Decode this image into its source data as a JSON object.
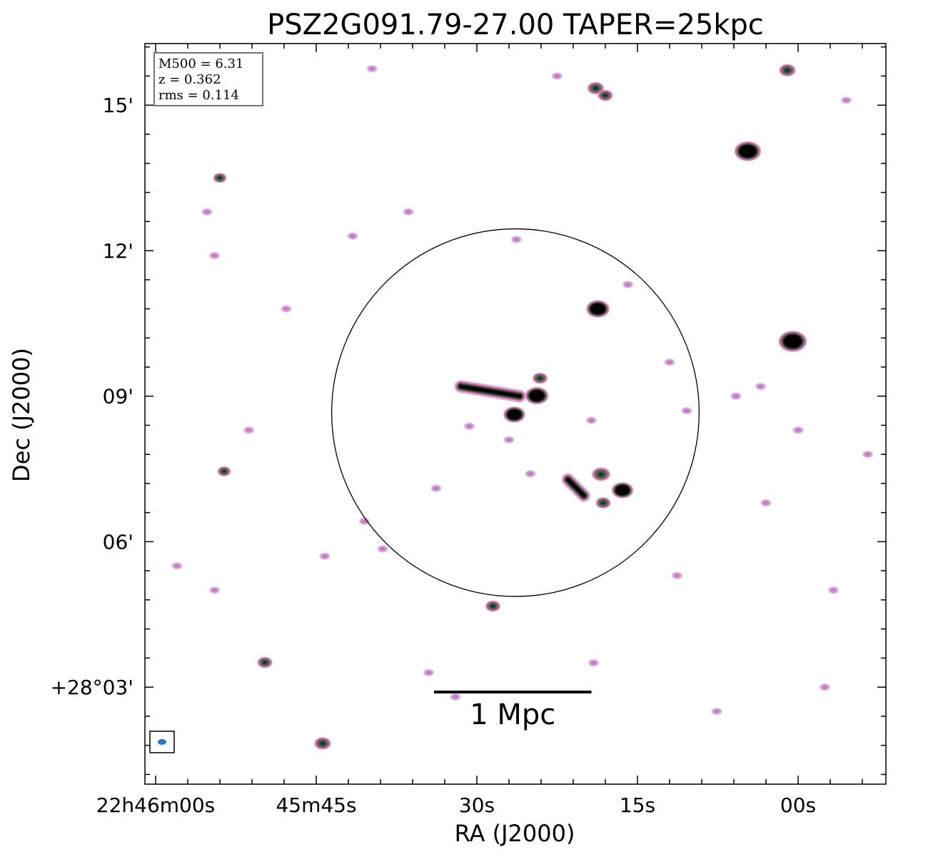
{
  "chart_data": {
    "type": "heatmap",
    "title": "PSZ2G091.79-27.00 TAPER=25kpc",
    "xlabel": "RA (J2000)",
    "ylabel": "Dec (J2000)",
    "x_ticks": [
      {
        "label": "22h46m00s",
        "ra_s": 0
      },
      {
        "label": "45m45s",
        "ra_s": -15
      },
      {
        "label": "30s",
        "ra_s": -30
      },
      {
        "label": "15s",
        "ra_s": -45
      },
      {
        "label": "00s",
        "ra_s": -60
      }
    ],
    "y_ticks": [
      {
        "label": "+28°03'",
        "dec_arcmin": 3
      },
      {
        "label": "06'",
        "dec_arcmin": 6
      },
      {
        "label": "09'",
        "dec_arcmin": 9
      },
      {
        "label": "12'",
        "dec_arcmin": 12
      },
      {
        "label": "15'",
        "dec_arcmin": 15
      }
    ],
    "ra_range_s": [
      1.0,
      -68.2
    ],
    "dec_range_arcmin": [
      1.0,
      16.27
    ],
    "info_box": [
      "M500 = 6.31",
      "z = 0.362",
      "rms = 0.114"
    ],
    "scalebar_label": "1 Mpc",
    "scalebar_ra_s": [
      -26.0,
      -40.7
    ],
    "scalebar_dec_arcmin": 2.9,
    "circle": {
      "center_ra_s": -33.6,
      "center_dec_arcmin": 8.66,
      "radius_arcmin": 3.79
    },
    "beam": {
      "ra_s": -0.6,
      "dec_arcmin": 1.87
    },
    "sources": [
      {
        "ra_s": -59.0,
        "dec_arcmin": 15.72,
        "size": 1.0
      },
      {
        "ra_s": -41.1,
        "dec_arcmin": 15.35,
        "size": 1.0
      },
      {
        "ra_s": -42.0,
        "dec_arcmin": 15.2,
        "size": 0.9
      },
      {
        "ra_s": -55.3,
        "dec_arcmin": 14.05,
        "size": 1.6
      },
      {
        "ra_s": -41.3,
        "dec_arcmin": 10.8,
        "size": 1.4
      },
      {
        "ra_s": -59.5,
        "dec_arcmin": 10.13,
        "size": 1.7
      },
      {
        "ra_s": -35.6,
        "dec_arcmin": 9.01,
        "size": 1.4
      },
      {
        "ra_s": -33.5,
        "dec_arcmin": 8.62,
        "size": 1.3
      },
      {
        "ra_s": -41.6,
        "dec_arcmin": 7.39,
        "size": 1.1
      },
      {
        "ra_s": -43.6,
        "dec_arcmin": 7.06,
        "size": 1.3
      },
      {
        "ra_s": -41.8,
        "dec_arcmin": 6.8,
        "size": 0.9
      },
      {
        "ra_s": -35.9,
        "dec_arcmin": 9.37,
        "size": 0.9
      },
      {
        "ra_s": -31.5,
        "dec_arcmin": 4.67,
        "size": 0.9
      },
      {
        "ra_s": -10.2,
        "dec_arcmin": 3.51,
        "size": 0.9
      },
      {
        "ra_s": -15.6,
        "dec_arcmin": 1.84,
        "size": 1.0
      },
      {
        "ra_s": -6.4,
        "dec_arcmin": 7.45,
        "size": 0.8
      },
      {
        "ra_s": -6.0,
        "dec_arcmin": 13.5,
        "size": 0.8
      }
    ],
    "extended": [
      {
        "ra0_s": -34.0,
        "dec0_arcmin": 9.0,
        "ra1_s": -28.5,
        "dec1_arcmin": 9.2
      },
      {
        "ra0_s": -38.5,
        "dec0_arcmin": 7.28,
        "ra1_s": -40.0,
        "dec1_arcmin": 6.95
      }
    ],
    "faint_hotspots": [
      {
        "ra_s": -33.7,
        "dec_arcmin": 12.23
      },
      {
        "ra_s": -40.7,
        "dec_arcmin": 8.5
      },
      {
        "ra_s": -29.3,
        "dec_arcmin": 8.38
      },
      {
        "ra_s": -33.0,
        "dec_arcmin": 8.1
      },
      {
        "ra_s": -26.2,
        "dec_arcmin": 7.1
      },
      {
        "ra_s": -35.0,
        "dec_arcmin": 7.4
      },
      {
        "ra_s": -21.2,
        "dec_arcmin": 5.85
      },
      {
        "ra_s": -19.5,
        "dec_arcmin": 6.42
      },
      {
        "ra_s": -48.0,
        "dec_arcmin": 9.7
      },
      {
        "ra_s": -49.6,
        "dec_arcmin": 8.7
      },
      {
        "ra_s": -54.2,
        "dec_arcmin": 9.0
      },
      {
        "ra_s": -56.5,
        "dec_arcmin": 9.2
      },
      {
        "ra_s": -5.5,
        "dec_arcmin": 11.9
      },
      {
        "ra_s": -4.8,
        "dec_arcmin": 12.8
      },
      {
        "ra_s": -48.7,
        "dec_arcmin": 5.3
      },
      {
        "ra_s": -44.1,
        "dec_arcmin": 11.3
      },
      {
        "ra_s": -12.2,
        "dec_arcmin": 10.8
      },
      {
        "ra_s": -8.7,
        "dec_arcmin": 8.3
      },
      {
        "ra_s": -15.8,
        "dec_arcmin": 5.7
      },
      {
        "ra_s": -40.9,
        "dec_arcmin": 3.5
      },
      {
        "ra_s": -52.4,
        "dec_arcmin": 2.5
      },
      {
        "ra_s": -62.5,
        "dec_arcmin": 3.0
      },
      {
        "ra_s": -63.3,
        "dec_arcmin": 5.0
      },
      {
        "ra_s": -66.5,
        "dec_arcmin": 7.8
      },
      {
        "ra_s": -2.0,
        "dec_arcmin": 5.5
      },
      {
        "ra_s": -5.5,
        "dec_arcmin": 5.0
      },
      {
        "ra_s": -25.5,
        "dec_arcmin": 3.3
      },
      {
        "ra_s": -28.0,
        "dec_arcmin": 2.8
      },
      {
        "ra_s": -37.5,
        "dec_arcmin": 15.6
      },
      {
        "ra_s": -20.2,
        "dec_arcmin": 15.75
      },
      {
        "ra_s": -64.5,
        "dec_arcmin": 15.1
      },
      {
        "ra_s": -23.6,
        "dec_arcmin": 12.8
      },
      {
        "ra_s": -18.4,
        "dec_arcmin": 12.3
      },
      {
        "ra_s": -57.0,
        "dec_arcmin": 6.8
      },
      {
        "ra_s": -60.0,
        "dec_arcmin": 8.3
      }
    ],
    "colormap": [
      "#ffffff",
      "#bcd9ef",
      "#a8b6f2",
      "#c994da",
      "#d9608f",
      "#2f6f4f",
      "#000000"
    ],
    "grid": false
  }
}
